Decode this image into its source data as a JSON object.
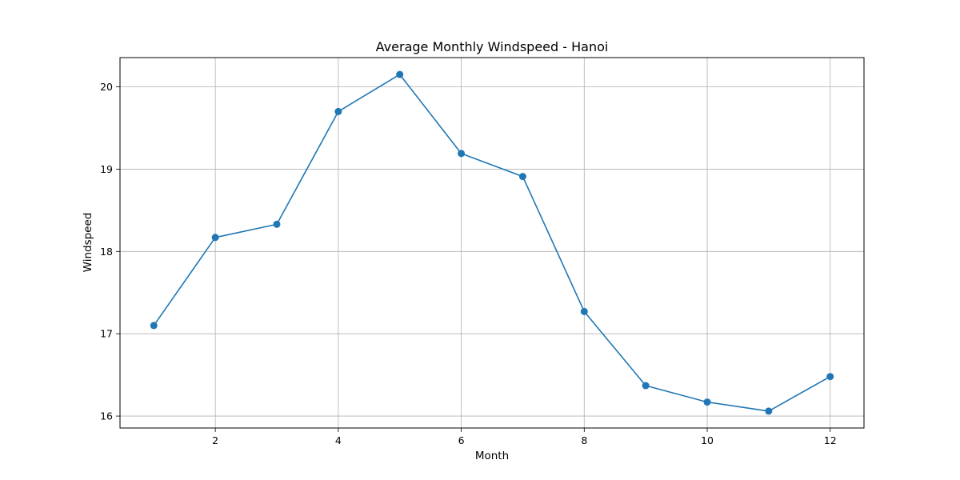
{
  "chart_data": {
    "type": "line",
    "title": "Average Monthly Windspeed - Hanoi",
    "xlabel": "Month",
    "ylabel": "Windspeed",
    "x": [
      1,
      2,
      3,
      4,
      5,
      6,
      7,
      8,
      9,
      10,
      11,
      12
    ],
    "series": [
      {
        "values": [
          17.1,
          18.17,
          18.33,
          19.7,
          20.15,
          19.19,
          18.91,
          17.27,
          16.37,
          16.17,
          16.06,
          16.48
        ],
        "color": "#1f77b4",
        "marker": "circle"
      }
    ],
    "xlim": [
      0.45,
      12.55
    ],
    "ylim": [
      15.855,
      20.355
    ],
    "xticks": [
      2,
      4,
      6,
      8,
      10,
      12
    ],
    "yticks": [
      16,
      17,
      18,
      19,
      20
    ],
    "grid": true,
    "grid_color": "#b0b0b0",
    "legend": false
  }
}
